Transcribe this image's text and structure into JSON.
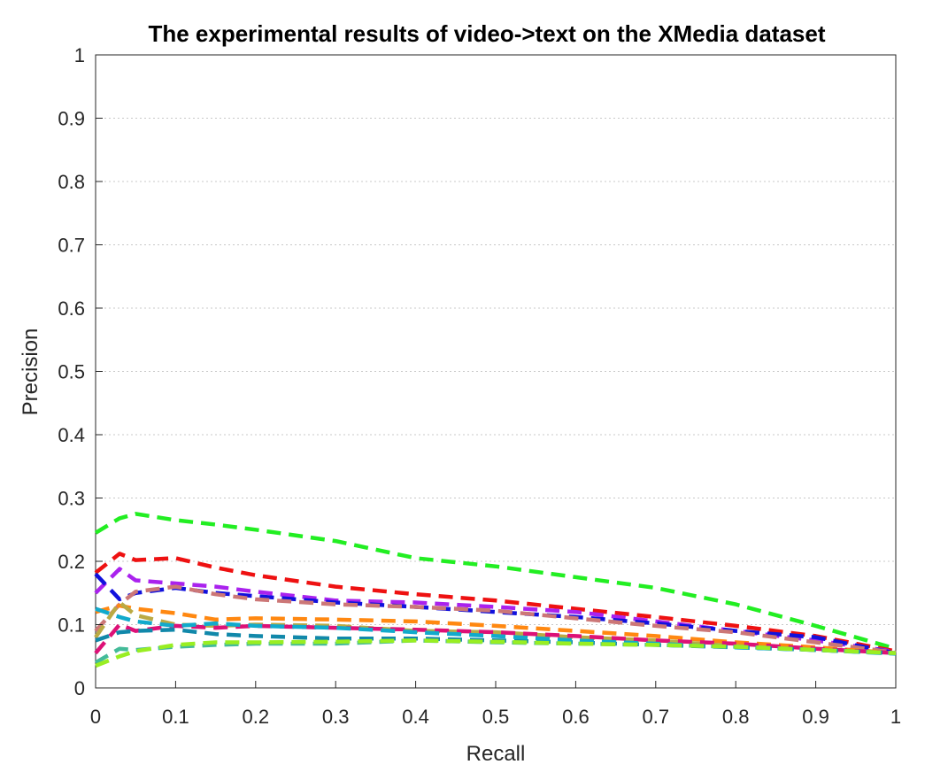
{
  "chart_data": {
    "type": "line",
    "title": "The experimental results of video->text on the XMedia dataset",
    "xlabel": "Recall",
    "ylabel": "Precision",
    "xlim": [
      0,
      1
    ],
    "ylim": [
      0,
      1
    ],
    "xticks": [
      "0",
      "0.1",
      "0.2",
      "0.3",
      "0.4",
      "0.5",
      "0.6",
      "0.7",
      "0.8",
      "0.9",
      "1"
    ],
    "yticks": [
      "0",
      "0.1",
      "0.2",
      "0.3",
      "0.4",
      "0.5",
      "0.6",
      "0.7",
      "0.8",
      "0.9",
      "1"
    ],
    "grid": true,
    "line_style": "dashed",
    "x": [
      0,
      0.03,
      0.05,
      0.1,
      0.15,
      0.2,
      0.3,
      0.4,
      0.5,
      0.6,
      0.7,
      0.8,
      0.9,
      1.0
    ],
    "series": [
      {
        "color": "#22ee22",
        "values": [
          0.245,
          0.268,
          0.275,
          0.265,
          0.258,
          0.25,
          0.232,
          0.205,
          0.192,
          0.175,
          0.158,
          0.132,
          0.098,
          0.062
        ]
      },
      {
        "color": "#ee1111",
        "values": [
          0.182,
          0.212,
          0.202,
          0.205,
          0.19,
          0.178,
          0.16,
          0.148,
          0.138,
          0.125,
          0.112,
          0.098,
          0.082,
          0.058
        ]
      },
      {
        "color": "#aa22ee",
        "values": [
          0.15,
          0.188,
          0.17,
          0.165,
          0.16,
          0.152,
          0.138,
          0.135,
          0.128,
          0.12,
          0.105,
          0.09,
          0.075,
          0.057
        ]
      },
      {
        "color": "#1111dd",
        "values": [
          0.18,
          0.14,
          0.15,
          0.158,
          0.15,
          0.145,
          0.135,
          0.128,
          0.12,
          0.112,
          0.102,
          0.09,
          0.08,
          0.055
        ]
      },
      {
        "color": "#cc7777",
        "values": [
          0.09,
          0.132,
          0.152,
          0.16,
          0.148,
          0.14,
          0.132,
          0.128,
          0.122,
          0.11,
          0.098,
          0.088,
          0.072,
          0.056
        ]
      },
      {
        "color": "#ff8811",
        "values": [
          0.12,
          0.13,
          0.125,
          0.118,
          0.108,
          0.11,
          0.108,
          0.105,
          0.098,
          0.09,
          0.082,
          0.072,
          0.064,
          0.055
        ]
      },
      {
        "color": "#bbaa44",
        "values": [
          0.08,
          0.135,
          0.115,
          0.1,
          0.098,
          0.1,
          0.098,
          0.09,
          0.088,
          0.08,
          0.075,
          0.066,
          0.06,
          0.055
        ]
      },
      {
        "color": "#dd1177",
        "values": [
          0.055,
          0.1,
          0.09,
          0.098,
          0.095,
          0.098,
          0.095,
          0.092,
          0.088,
          0.082,
          0.075,
          0.07,
          0.062,
          0.055
        ]
      },
      {
        "color": "#1188aa",
        "values": [
          0.075,
          0.088,
          0.09,
          0.092,
          0.085,
          0.082,
          0.078,
          0.078,
          0.075,
          0.072,
          0.068,
          0.064,
          0.06,
          0.055
        ]
      },
      {
        "color": "#11aacc",
        "values": [
          0.125,
          0.112,
          0.105,
          0.098,
          0.102,
          0.098,
          0.095,
          0.088,
          0.082,
          0.075,
          0.07,
          0.064,
          0.06,
          0.054
        ]
      },
      {
        "color": "#44bb99",
        "values": [
          0.04,
          0.062,
          0.06,
          0.065,
          0.068,
          0.07,
          0.07,
          0.075,
          0.072,
          0.07,
          0.068,
          0.065,
          0.06,
          0.055
        ]
      },
      {
        "color": "#99ee22",
        "values": [
          0.035,
          0.05,
          0.058,
          0.068,
          0.072,
          0.072,
          0.073,
          0.075,
          0.073,
          0.07,
          0.068,
          0.065,
          0.06,
          0.055
        ]
      }
    ]
  }
}
